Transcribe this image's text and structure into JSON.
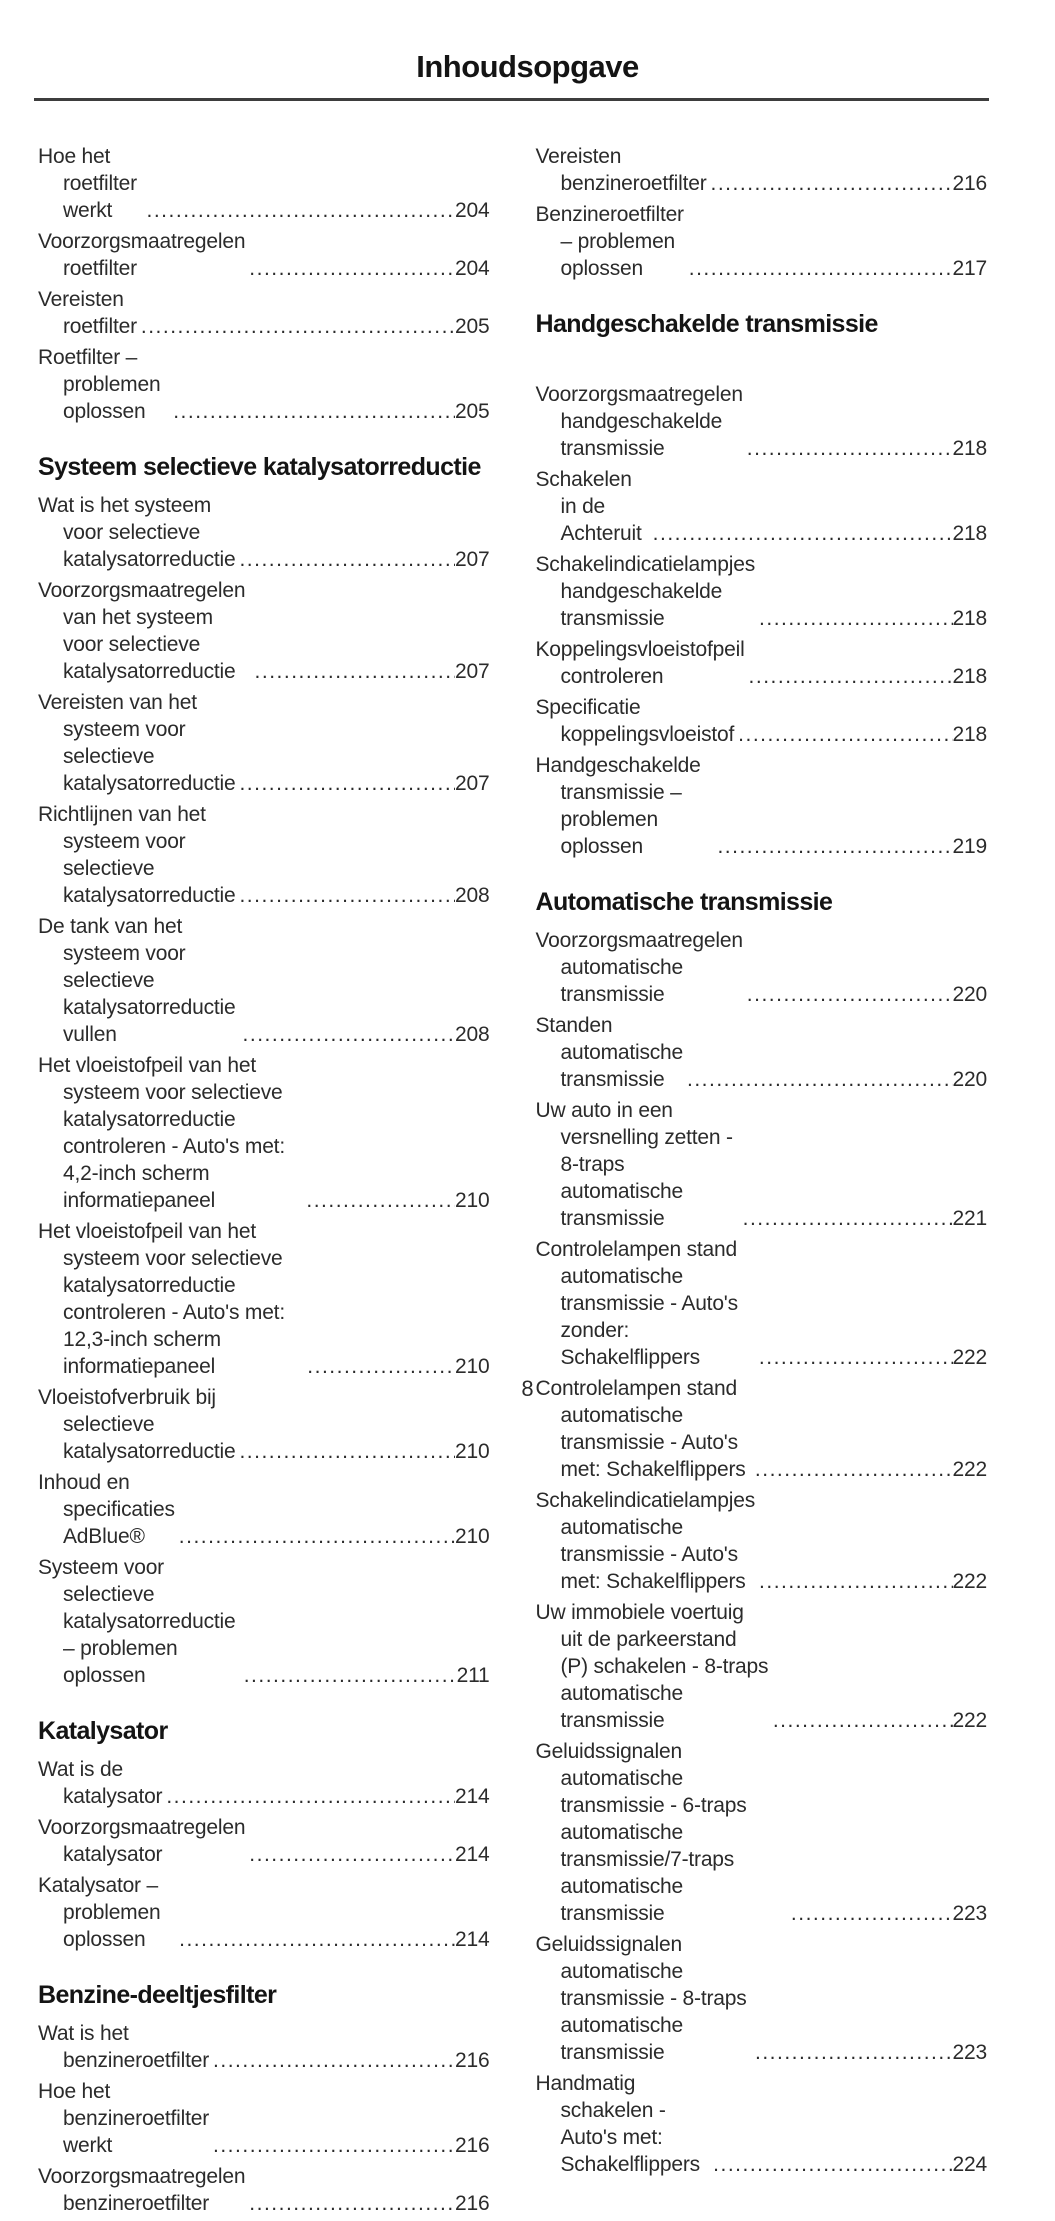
{
  "page": {
    "title": "Inhoudsopgave",
    "page_number": "8"
  },
  "columns": [
    {
      "blocks": [
        {
          "type": "entry",
          "label": "Hoe het roetfilter werkt",
          "page": "204"
        },
        {
          "type": "entry",
          "label": "Voorzorgsmaatregelen roetfilter",
          "page": "204"
        },
        {
          "type": "entry",
          "label": "Vereisten roetfilter",
          "page": "205"
        },
        {
          "type": "entry",
          "label": "Roetfilter – problemen oplossen",
          "page": "205"
        },
        {
          "type": "heading",
          "text": "Systeem selectieve katalysa­torreductie"
        },
        {
          "type": "entry",
          "label": "Wat is het systeem voor selectieve katalysatorreductie",
          "page": "207"
        },
        {
          "type": "entry",
          "label": "Voorzorgsmaatregelen van het systeem voor selectieve katalysatorreductie",
          "page": "207"
        },
        {
          "type": "entry",
          "label": "Vereisten van het systeem voor selectieve katalysatorreductie",
          "page": "207"
        },
        {
          "type": "entry",
          "label": "Richtlijnen van het systeem voor selectieve katalysatorreductie",
          "page": "208"
        },
        {
          "type": "entry",
          "label": "De tank van het systeem voor selectieve katalysatorreductie vullen",
          "page": "208"
        },
        {
          "type": "entry",
          "label": "Het vloeistofpeil van het systeem voor selectieve katalysatorreductie controleren - Auto's met: 4,2-inch scherm informatiepaneel",
          "page": "210"
        },
        {
          "type": "entry",
          "label": "Het vloeistofpeil van het systeem voor selectieve katalysatorreductie controleren - Auto's met: 12,3-inch scherm informatiepaneel",
          "page": "210"
        },
        {
          "type": "entry",
          "label": "Vloeistofverbruik bij selectieve katalysatorreductie",
          "page": "210"
        },
        {
          "type": "entry",
          "label": "Inhoud en specificaties AdBlue®",
          "page": "210"
        },
        {
          "type": "entry",
          "label": "Systeem voor selectieve katalysatorreductie – problemen oplossen",
          "page": "211"
        },
        {
          "type": "heading",
          "text": "Katalysator"
        },
        {
          "type": "entry",
          "label": "Wat is de katalysator",
          "page": "214"
        },
        {
          "type": "entry",
          "label": "Voorzorgsmaatregelen katalysator",
          "page": "214"
        },
        {
          "type": "entry",
          "label": "Katalysator – problemen oplossen",
          "page": "214"
        },
        {
          "type": "heading",
          "text": "Benzine-deeltjesfilter"
        },
        {
          "type": "entry",
          "label": "Wat is het benzineroetfilter",
          "page": "216"
        },
        {
          "type": "entry",
          "label": "Hoe het benzineroetfilter werkt",
          "page": "216"
        },
        {
          "type": "entry",
          "label": "Voorzorgsmaatregelen benzineroetfilter",
          "page": "216"
        }
      ]
    },
    {
      "blocks": [
        {
          "type": "entry",
          "label": "Vereisten benzineroetfilter",
          "page": "216"
        },
        {
          "type": "entry",
          "label": "Benzineroetfilter – problemen oplossen",
          "page": "217"
        },
        {
          "type": "heading",
          "text": "Handgeschakelde transmissie",
          "extra_gap": true
        },
        {
          "type": "entry",
          "label": "Voorzorgsmaatregelen handgeschakelde transmissie",
          "page": "218"
        },
        {
          "type": "entry",
          "label": "Schakelen in de Achteruit",
          "page": "218"
        },
        {
          "type": "entry",
          "label": "Schakelindicatielampjes handgeschakelde transmissie",
          "page": "218"
        },
        {
          "type": "entry",
          "label": "Koppelingsvloeistofpeil controleren",
          "page": "218"
        },
        {
          "type": "entry",
          "label": "Specificatie koppelingsvloeistof",
          "page": "218"
        },
        {
          "type": "entry",
          "label": "Handgeschakelde transmissie – problemen oplossen",
          "page": "219"
        },
        {
          "type": "heading",
          "text": "Automatische transmissie"
        },
        {
          "type": "entry",
          "label": "Voorzorgsmaatregelen automatische transmissie",
          "page": "220"
        },
        {
          "type": "entry",
          "label": "Standen automatische transmissie",
          "page": "220"
        },
        {
          "type": "entry",
          "label": "Uw auto in een versnelling zetten - 8-traps automatische transmissie",
          "page": "221"
        },
        {
          "type": "entry",
          "label": "Controlelampen stand automatische transmissie - Auto's zonder: Schakelflippers",
          "page": "222"
        },
        {
          "type": "entry",
          "label": "Controlelampen stand automatische transmissie - Auto's met: Schakelflippers",
          "page": "222"
        },
        {
          "type": "entry",
          "label": "Schakelindicatielampjes automatische transmissie - Auto's met: Schakelflippers",
          "page": "222"
        },
        {
          "type": "entry",
          "label": "Uw immobiele voertuig uit de parkeerstand (P) schakelen - 8-traps automatische transmissie",
          "page": "222"
        },
        {
          "type": "entry",
          "label": "Geluidssignalen automatische transmissie - 6-traps automatische transmissie/7-traps automatische transmissie",
          "page": "223"
        },
        {
          "type": "entry",
          "label": "Geluidssignalen automatische transmissie - 8-traps automatische transmissie",
          "page": "223"
        },
        {
          "type": "entry",
          "label": "Handmatig schakelen - Auto's met: Schakelflippers",
          "page": "224"
        }
      ]
    }
  ]
}
